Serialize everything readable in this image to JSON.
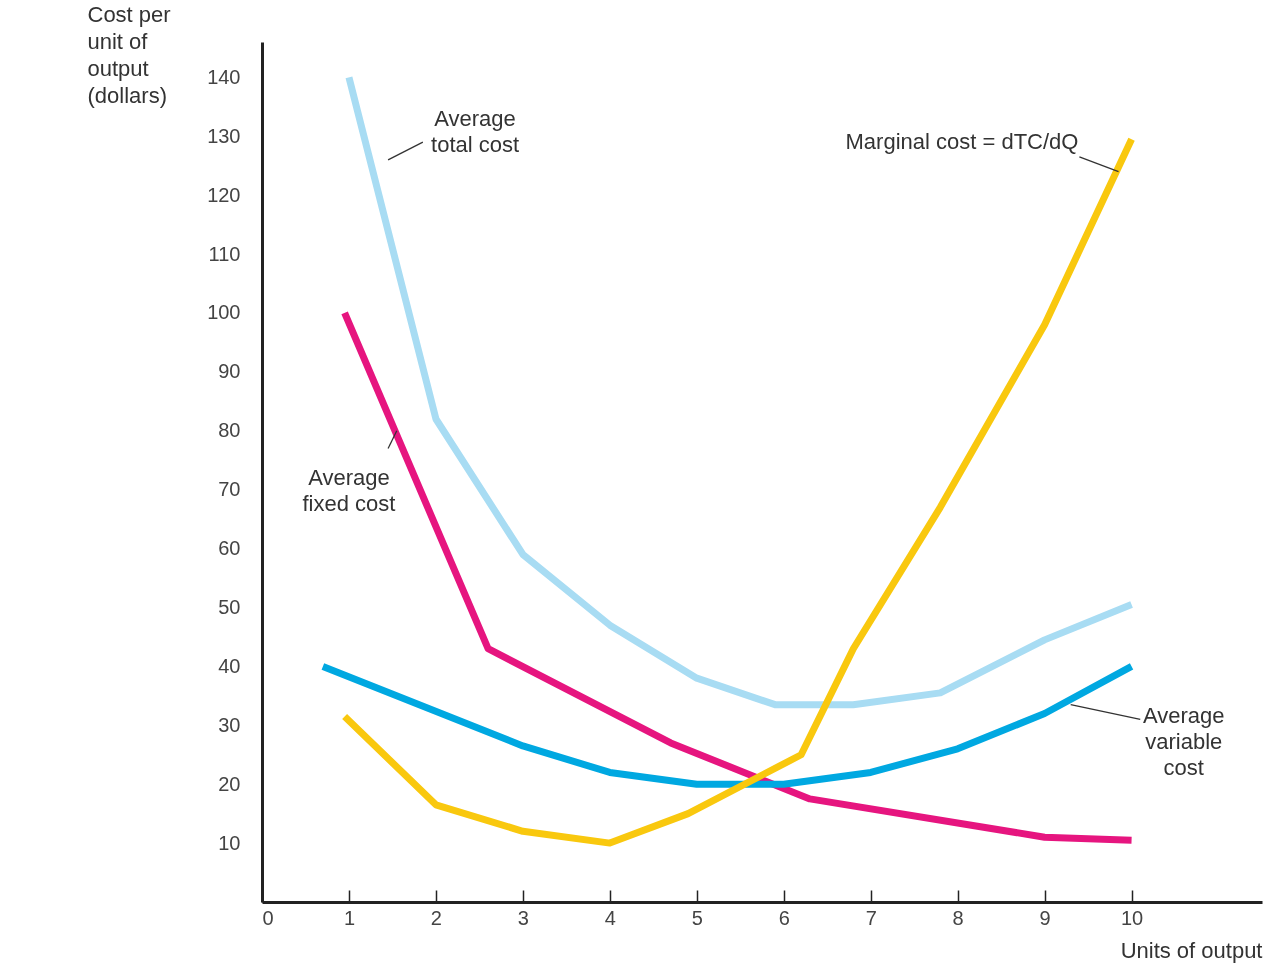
{
  "chart_data": {
    "type": "line",
    "ylabel": "Cost per unit of output (dollars)",
    "xlabel": "Units of output",
    "xlim": [
      0,
      11.5
    ],
    "ylim": [
      0,
      146
    ],
    "xticks": [
      0,
      1,
      2,
      3,
      4,
      5,
      6,
      7,
      8,
      9,
      10
    ],
    "yticks": [
      10,
      20,
      30,
      40,
      50,
      60,
      70,
      80,
      90,
      100,
      110,
      120,
      130,
      140
    ],
    "grid": false,
    "legend": false,
    "marker": "none",
    "line_style": "solid",
    "series": [
      {
        "name": "Average total cost",
        "color": "#a8dcf3",
        "x": [
          1,
          2,
          3,
          4,
          5,
          5.9,
          6.8,
          7.8,
          9,
          10
        ],
        "values": [
          140,
          82,
          59,
          47,
          38,
          33.5,
          33.5,
          35.5,
          44.5,
          50.5
        ]
      },
      {
        "name": "Average fixed cost",
        "color": "#e6157f",
        "x": [
          0.95,
          2.6,
          4.7,
          6.3,
          9,
          10
        ],
        "values": [
          100,
          43,
          27,
          17.5,
          11,
          10.5
        ]
      },
      {
        "name": "Average variable cost",
        "color": "#00a8e1",
        "x": [
          0.7,
          3,
          4,
          5,
          6,
          7,
          8,
          9,
          10
        ],
        "values": [
          40,
          26.5,
          22,
          20,
          20,
          22,
          26,
          32,
          40
        ]
      },
      {
        "name": "Marginal cost = dTC/dQ",
        "color": "#f9c80e",
        "x": [
          0.95,
          2,
          3,
          4,
          4.9,
          6.2,
          6.8,
          7.8,
          9,
          10
        ],
        "values": [
          31.5,
          16.5,
          12,
          10,
          15,
          25,
          43,
          67,
          98,
          129.5
        ]
      }
    ]
  }
}
